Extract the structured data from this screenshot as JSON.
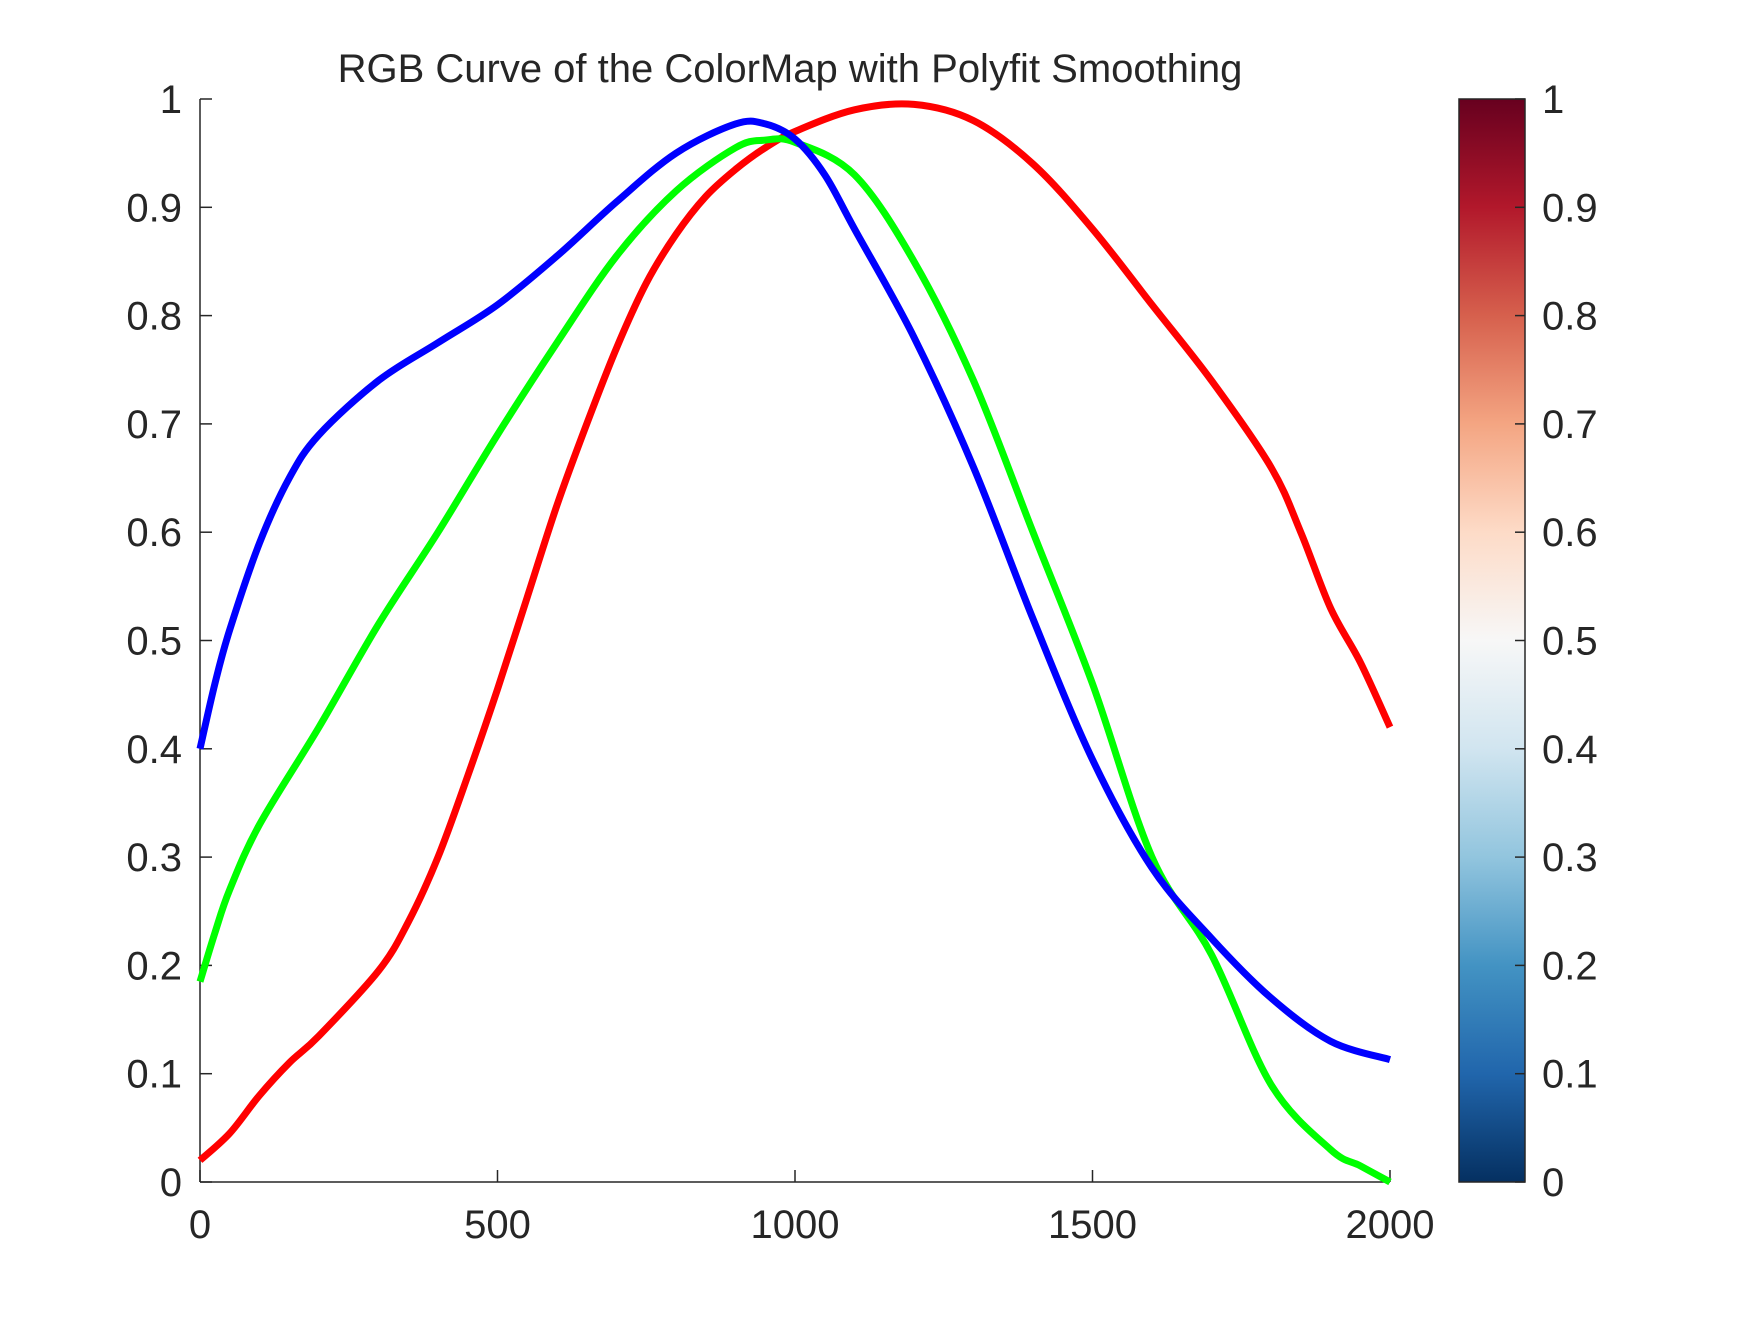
{
  "chart_data": {
    "type": "line",
    "title": "RGB Curve of the ColorMap with Polyfit Smoothing",
    "xlabel": "",
    "ylabel": "",
    "xlim": [
      0,
      2000
    ],
    "ylim": [
      0,
      1
    ],
    "xticks": [
      "0",
      "500",
      "1000",
      "1500",
      "2000"
    ],
    "xtick_values": [
      0,
      500,
      1000,
      1500,
      2000
    ],
    "yticks": [
      "0",
      "0.1",
      "0.2",
      "0.3",
      "0.4",
      "0.5",
      "0.6",
      "0.7",
      "0.8",
      "0.9",
      "1"
    ],
    "ytick_values": [
      0,
      0.1,
      0.2,
      0.3,
      0.4,
      0.5,
      0.6,
      0.7,
      0.8,
      0.9,
      1
    ],
    "grid": false,
    "series": [
      {
        "color": "#ff0000",
        "x": [
          0,
          50,
          100,
          150,
          200,
          300,
          350,
          400,
          450,
          500,
          550,
          600,
          650,
          700,
          750,
          800,
          850,
          900,
          950,
          1000,
          1100,
          1200,
          1300,
          1400,
          1500,
          1600,
          1700,
          1800,
          1850,
          1900,
          1950,
          2000
        ],
        "y": [
          0.02,
          0.045,
          0.08,
          0.11,
          0.135,
          0.195,
          0.24,
          0.3,
          0.375,
          0.455,
          0.54,
          0.625,
          0.7,
          0.77,
          0.83,
          0.875,
          0.91,
          0.935,
          0.955,
          0.97,
          0.99,
          0.995,
          0.98,
          0.94,
          0.88,
          0.81,
          0.74,
          0.66,
          0.6,
          0.53,
          0.48,
          0.42
        ]
      },
      {
        "color": "#00ff00",
        "x": [
          0,
          25,
          50,
          100,
          200,
          300,
          400,
          500,
          600,
          700,
          800,
          900,
          950,
          1000,
          1100,
          1200,
          1300,
          1400,
          1500,
          1600,
          1700,
          1800,
          1900,
          1950,
          2000
        ],
        "y": [
          0.185,
          0.23,
          0.27,
          0.33,
          0.42,
          0.515,
          0.6,
          0.69,
          0.775,
          0.855,
          0.915,
          0.955,
          0.962,
          0.96,
          0.93,
          0.85,
          0.74,
          0.6,
          0.46,
          0.3,
          0.21,
          0.09,
          0.03,
          0.015,
          0.0
        ]
      },
      {
        "color": "#0000ff",
        "x": [
          0,
          25,
          50,
          100,
          150,
          200,
          300,
          400,
          500,
          600,
          700,
          800,
          900,
          950,
          1000,
          1050,
          1100,
          1200,
          1300,
          1400,
          1500,
          1600,
          1700,
          1800,
          1900,
          2000
        ],
        "y": [
          0.4,
          0.46,
          0.51,
          0.59,
          0.65,
          0.69,
          0.74,
          0.775,
          0.81,
          0.855,
          0.905,
          0.95,
          0.977,
          0.977,
          0.963,
          0.93,
          0.88,
          0.78,
          0.66,
          0.52,
          0.39,
          0.29,
          0.225,
          0.17,
          0.13,
          0.113
        ]
      }
    ],
    "colorbar": {
      "ticks": [
        "0",
        "0.1",
        "0.2",
        "0.3",
        "0.4",
        "0.5",
        "0.6",
        "0.7",
        "0.8",
        "0.9",
        "1"
      ],
      "tick_values": [
        0,
        0.1,
        0.2,
        0.3,
        0.4,
        0.5,
        0.6,
        0.7,
        0.8,
        0.9,
        1
      ],
      "range": [
        0,
        1
      ],
      "colors": [
        "#053061",
        "#2166ac",
        "#4393c3",
        "#92c5de",
        "#d1e5f0",
        "#f7f7f7",
        "#fddbc7",
        "#f4a582",
        "#d6604d",
        "#b2182b",
        "#67001f"
      ]
    }
  }
}
